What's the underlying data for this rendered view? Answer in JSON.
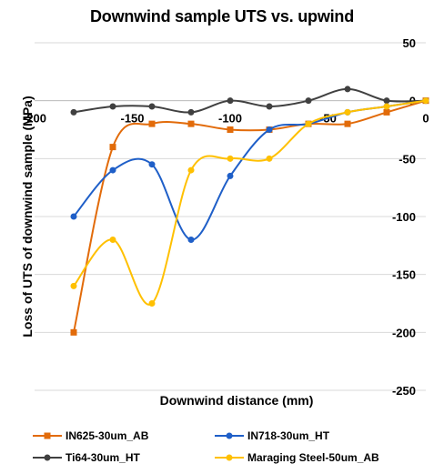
{
  "chart_data": {
    "type": "line",
    "title": "Downwind sample UTS vs. upwind",
    "xlabel": "Downwind distance (mm)",
    "ylabel": "Loss of UTS of downwind sample (MPa)",
    "xlim": [
      -200,
      0
    ],
    "ylim": [
      -250,
      50
    ],
    "xticks": [
      "-200",
      "-150",
      "-100",
      "-50",
      "0"
    ],
    "yticks": [
      "50",
      "0",
      "-50",
      "-100",
      "-150",
      "-200",
      "-250"
    ],
    "grid": "horizontal",
    "legend": "bottom",
    "series": [
      {
        "name": "IN625-30um_AB",
        "color": "#E26B0A",
        "marker": "square",
        "x": [
          -180,
          -160,
          -140,
          -120,
          -100,
          -80,
          -60,
          -40,
          -20,
          0
        ],
        "y": [
          -200,
          -40,
          -20,
          -20,
          -25,
          -25,
          -20,
          -20,
          -10,
          0
        ]
      },
      {
        "name": "IN718-30um_HT",
        "color": "#1F5FC8",
        "marker": "circle",
        "x": [
          -180,
          -160,
          -140,
          -120,
          -100,
          -80,
          -60,
          -40,
          -20,
          0
        ],
        "y": [
          -100,
          -60,
          -55,
          -120,
          -65,
          -25,
          -20,
          -10,
          -5,
          0
        ]
      },
      {
        "name": "Ti64-30um_HT",
        "color": "#404040",
        "marker": "circle",
        "x": [
          -180,
          -160,
          -140,
          -120,
          -100,
          -80,
          -60,
          -40,
          -20,
          0
        ],
        "y": [
          -10,
          -5,
          -5,
          -10,
          0,
          -5,
          0,
          10,
          0,
          0
        ]
      },
      {
        "name": "Maraging Steel-50um_AB",
        "color": "#FFC000",
        "marker": "circle",
        "x": [
          -180,
          -160,
          -140,
          -120,
          -100,
          -80,
          -60,
          -40,
          -20,
          0
        ],
        "y": [
          -160,
          -120,
          -175,
          -60,
          -50,
          -50,
          -20,
          -10,
          -5,
          0
        ]
      }
    ]
  }
}
